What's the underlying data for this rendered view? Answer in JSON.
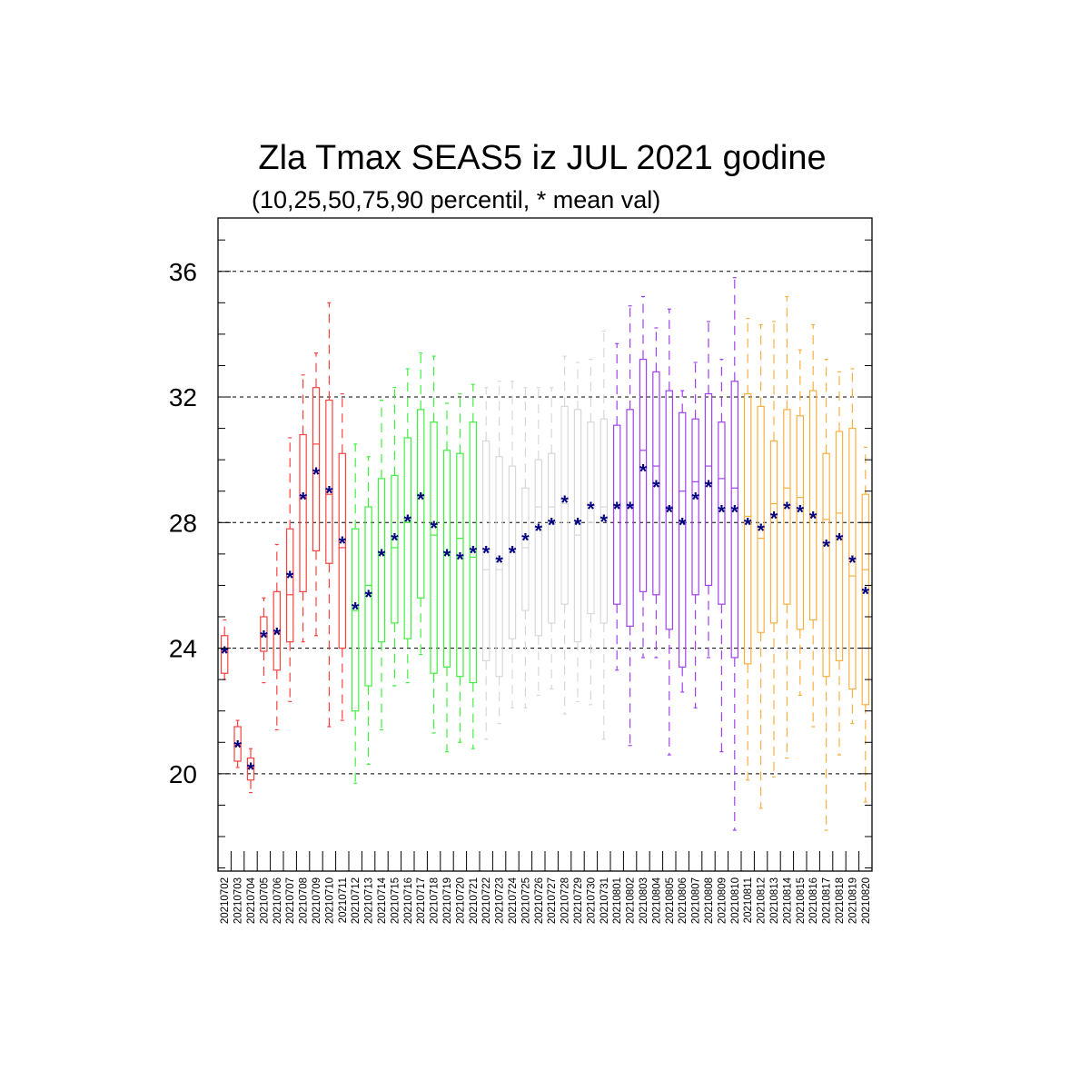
{
  "chart_data": {
    "type": "box",
    "title": "Zla Tmax SEAS5 iz JUL 2021 godine",
    "subtitle": "(10,25,50,75,90 percentil, * mean val)",
    "y_ticks": [
      "20",
      "24",
      "28",
      "32",
      "36"
    ],
    "y_range": [
      16.9,
      37.7
    ],
    "grid_values": [
      20,
      24,
      28,
      32,
      36
    ],
    "colors": {
      "jul_early": "#ff4040",
      "jul_mid": "#40f040",
      "jul_late": "#d8d8d8",
      "aug_early": "#a040f0",
      "aug_mid": "#f8b040",
      "mean_marker": "#000080"
    },
    "categories": [
      "20210702",
      "20210703",
      "20210704",
      "20210705",
      "20210706",
      "20210707",
      "20210708",
      "20210709",
      "20210710",
      "20210711",
      "20210712",
      "20210713",
      "20210714",
      "20210715",
      "20210716",
      "20210717",
      "20210718",
      "20210719",
      "20210720",
      "20210721",
      "20210722",
      "20210723",
      "20210724",
      "20210725",
      "20210726",
      "20210727",
      "20210728",
      "20210729",
      "20210730",
      "20210731",
      "20210801",
      "20210802",
      "20210803",
      "20210804",
      "20210805",
      "20210806",
      "20210807",
      "20210808",
      "20210809",
      "20210810",
      "20210811",
      "20210812",
      "20210813",
      "20210814",
      "20210815",
      "20210816",
      "20210817",
      "20210818",
      "20210819",
      "20210820"
    ],
    "color_groups": [
      "jul_early",
      "jul_early",
      "jul_early",
      "jul_early",
      "jul_early",
      "jul_early",
      "jul_early",
      "jul_early",
      "jul_early",
      "jul_early",
      "jul_mid",
      "jul_mid",
      "jul_mid",
      "jul_mid",
      "jul_mid",
      "jul_mid",
      "jul_mid",
      "jul_mid",
      "jul_mid",
      "jul_mid",
      "jul_late",
      "jul_late",
      "jul_late",
      "jul_late",
      "jul_late",
      "jul_late",
      "jul_late",
      "jul_late",
      "jul_late",
      "jul_late",
      "aug_early",
      "aug_early",
      "aug_early",
      "aug_early",
      "aug_early",
      "aug_early",
      "aug_early",
      "aug_early",
      "aug_early",
      "aug_early",
      "aug_mid",
      "aug_mid",
      "aug_mid",
      "aug_mid",
      "aug_mid",
      "aug_mid",
      "aug_mid",
      "aug_mid",
      "aug_mid",
      "aug_mid"
    ],
    "p10": [
      23.0,
      20.2,
      19.4,
      22.9,
      21.4,
      22.3,
      24.2,
      24.4,
      21.5,
      21.7,
      19.7,
      20.3,
      21.4,
      22.8,
      22.9,
      23.8,
      21.3,
      20.7,
      21.0,
      20.8,
      21.1,
      21.6,
      22.1,
      22.1,
      22.5,
      22.7,
      21.9,
      22.3,
      22.2,
      21.1,
      23.3,
      20.9,
      23.7,
      23.7,
      20.6,
      22.6,
      22.1,
      23.7,
      20.7,
      18.2,
      19.8,
      18.9,
      19.9,
      20.5,
      22.5,
      21.5,
      18.2,
      20.6,
      21.6,
      19.1
    ],
    "p25": [
      23.2,
      20.4,
      19.8,
      23.9,
      23.3,
      24.2,
      25.8,
      27.1,
      26.7,
      24.0,
      22.0,
      22.8,
      24.2,
      24.8,
      24.3,
      25.6,
      23.2,
      23.4,
      23.1,
      22.9,
      23.6,
      23.1,
      24.3,
      25.2,
      24.4,
      24.8,
      25.4,
      24.2,
      25.1,
      24.8,
      25.4,
      24.7,
      25.8,
      25.7,
      24.6,
      23.4,
      25.7,
      26.0,
      25.4,
      23.7,
      23.5,
      24.5,
      24.8,
      25.4,
      24.6,
      24.9,
      23.1,
      23.6,
      22.7,
      22.2
    ],
    "p50": [
      23.9,
      20.9,
      20.2,
      24.4,
      24.5,
      25.7,
      28.8,
      30.5,
      28.9,
      27.2,
      25.2,
      26.0,
      27.0,
      27.2,
      28.0,
      28.9,
      27.6,
      27.0,
      27.5,
      26.9,
      26.5,
      26.5,
      27.1,
      27.2,
      28.5,
      28.5,
      28.6,
      27.6,
      28.0,
      28.5,
      28.5,
      28.5,
      30.3,
      29.8,
      28.5,
      29.0,
      29.3,
      29.8,
      29.4,
      29.1,
      28.2,
      27.5,
      28.6,
      29.1,
      28.8,
      28.2,
      28.1,
      28.3,
      26.3,
      26.5
    ],
    "p75": [
      24.4,
      21.5,
      20.5,
      25.0,
      25.8,
      27.8,
      30.8,
      32.3,
      31.9,
      30.2,
      27.8,
      28.5,
      29.4,
      29.5,
      30.7,
      31.6,
      31.2,
      30.3,
      30.2,
      31.2,
      30.6,
      30.1,
      29.8,
      29.1,
      30.0,
      30.2,
      31.7,
      31.6,
      31.2,
      31.3,
      31.1,
      31.6,
      33.2,
      32.8,
      32.2,
      31.5,
      31.3,
      32.1,
      31.2,
      32.5,
      32.1,
      31.7,
      30.6,
      31.6,
      31.4,
      32.2,
      30.2,
      30.9,
      31.0,
      28.9
    ],
    "p90": [
      24.9,
      21.7,
      20.8,
      25.6,
      27.3,
      30.7,
      32.7,
      33.4,
      35.0,
      32.1,
      30.5,
      30.1,
      31.9,
      32.3,
      32.9,
      33.4,
      33.3,
      31.8,
      32.1,
      32.4,
      32.3,
      32.5,
      32.5,
      32.3,
      32.3,
      32.3,
      33.3,
      33.1,
      33.2,
      34.1,
      33.7,
      34.9,
      35.2,
      34.2,
      34.8,
      32.2,
      33.1,
      34.4,
      33.2,
      35.8,
      34.5,
      34.3,
      34.4,
      35.2,
      33.5,
      34.3,
      33.2,
      32.8,
      32.9,
      30.4
    ],
    "mean": [
      23.9,
      20.9,
      20.2,
      24.4,
      24.5,
      26.3,
      28.8,
      29.6,
      29.0,
      27.4,
      25.3,
      25.7,
      27.0,
      27.5,
      28.1,
      28.8,
      27.9,
      27.0,
      26.9,
      27.1,
      27.1,
      26.8,
      27.1,
      27.5,
      27.8,
      28.0,
      28.7,
      28.0,
      28.5,
      28.1,
      28.5,
      28.5,
      29.7,
      29.2,
      28.4,
      28.0,
      28.8,
      29.2,
      28.4,
      28.4,
      28.0,
      27.8,
      28.2,
      28.5,
      28.4,
      28.2,
      27.3,
      27.5,
      26.8,
      25.8
    ],
    "mean_symbol": "*"
  }
}
